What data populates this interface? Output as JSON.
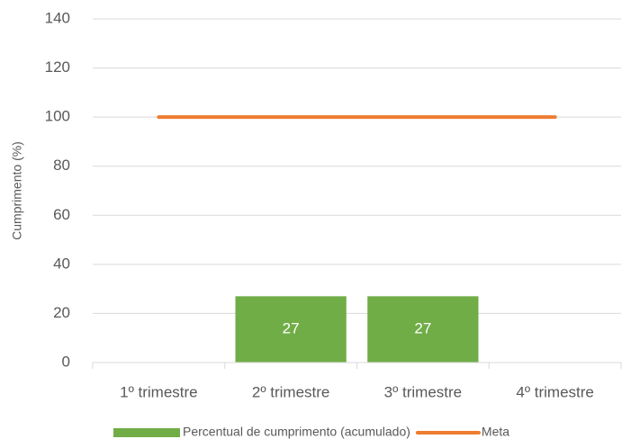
{
  "chart_data": {
    "type": "bar",
    "y_label": "Cumprimento (%)",
    "categories": [
      "1º trimestre",
      "2º trimestre",
      "3º trimestre",
      "4º trimestre"
    ],
    "series": [
      {
        "name": "Percentual de cumprimento (acumulado)",
        "type": "bar",
        "color": "#70ad47",
        "values": [
          null,
          27,
          27,
          null
        ]
      },
      {
        "name": "Meta",
        "type": "line",
        "color": "#ed7d31",
        "values": [
          100,
          100,
          100,
          100
        ]
      }
    ],
    "ylim": [
      0,
      140
    ],
    "yticks": [
      0,
      20,
      40,
      60,
      80,
      100,
      120,
      140
    ],
    "grid": true,
    "legend": "bottom"
  }
}
